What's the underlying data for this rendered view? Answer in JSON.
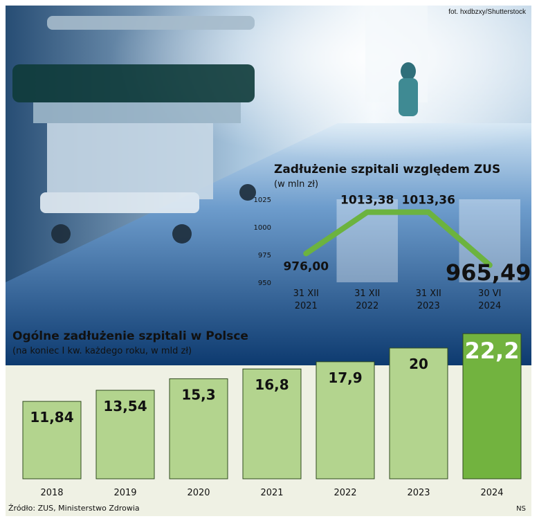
{
  "photo_credit": "fot. hxdbzxy/Shutterstock",
  "source": "Źródło: ZUS, Ministerstwo Zdrowia",
  "author": "NS",
  "colors": {
    "bar": "#b3d48e",
    "bar_highlight": "#72b33f",
    "line": "#6cb33f",
    "bar_text": "#111111",
    "bar_highlight_text": "#ffffff",
    "photo_dark": "#0b2e57",
    "photo_light": "#d3e6f4"
  },
  "chart_data": [
    {
      "type": "line",
      "title": "Zadłużenie szpitali względem ZUS",
      "subtitle": "(w mln zł)",
      "categories": [
        "31 XII\n2021",
        "31 XII\n2022",
        "31 XII\n2023",
        "30 VI\n2024"
      ],
      "values": [
        976.0,
        1013.38,
        1013.36,
        965.49
      ],
      "value_labels": [
        "976,00",
        "1013,38",
        "1013,36",
        "965,49"
      ],
      "yticks": [
        950,
        975,
        1000,
        1025
      ],
      "ytick_labels": [
        "950",
        "975",
        "1000",
        "1025"
      ],
      "ylim": [
        950,
        1025
      ],
      "grid": false
    },
    {
      "type": "bar",
      "title": "Ogólne zadłużenie szpitali w Polsce",
      "subtitle": "(na koniec I kw. każdego roku, w mld zł)",
      "categories": [
        "2018",
        "2019",
        "2020",
        "2021",
        "2022",
        "2023",
        "2024"
      ],
      "values": [
        11.84,
        13.54,
        15.3,
        16.8,
        17.9,
        20,
        22.2
      ],
      "value_labels": [
        "11,84",
        "13,54",
        "15,3",
        "16,8",
        "17,9",
        "20",
        "22,2"
      ],
      "highlight_index": 6
    }
  ]
}
